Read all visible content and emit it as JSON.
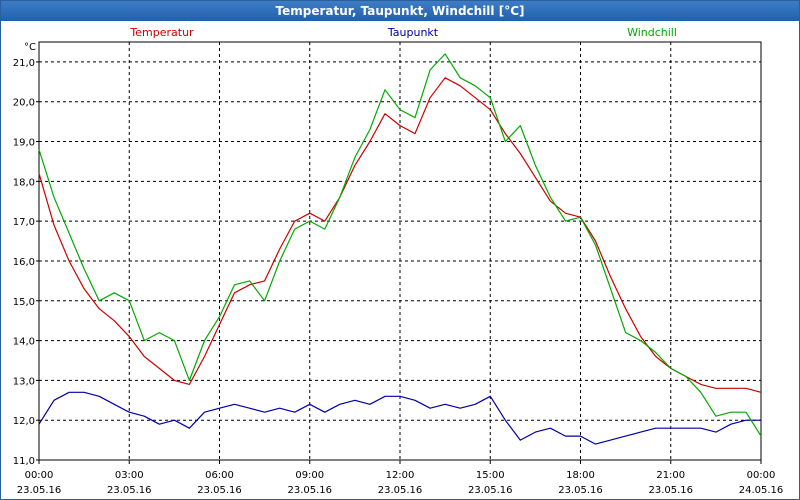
{
  "window": {
    "title": "Temperatur, Taupunkt, Windchill [°C]"
  },
  "chart_data": {
    "type": "line",
    "title": "Temperatur, Taupunkt, Windchill [°C]",
    "ylabel": "°C",
    "ylim": [
      11.0,
      21.5
    ],
    "y_ticks": [
      "11,0",
      "12,0",
      "13,0",
      "14,0",
      "15,0",
      "16,0",
      "17,0",
      "18,0",
      "19,0",
      "20,0",
      "21,0"
    ],
    "x_ticks": [
      {
        "time": "00:00",
        "date": "23.05.16"
      },
      {
        "time": "03:00",
        "date": "23.05.16"
      },
      {
        "time": "06:00",
        "date": "23.05.16"
      },
      {
        "time": "09:00",
        "date": "23.05.16"
      },
      {
        "time": "12:00",
        "date": "23.05.16"
      },
      {
        "time": "15:00",
        "date": "23.05.16"
      },
      {
        "time": "18:00",
        "date": "23.05.16"
      },
      {
        "time": "21:00",
        "date": "23.05.16"
      },
      {
        "time": "00:00",
        "date": "24.05.16"
      }
    ],
    "xlim_hours": [
      0,
      24
    ],
    "grid": true,
    "series": [
      {
        "name": "Temperatur",
        "color": "#cc0000",
        "x": [
          0,
          0.5,
          1,
          1.5,
          2,
          2.5,
          3,
          3.5,
          4,
          4.5,
          5,
          5.5,
          6,
          6.5,
          7,
          7.5,
          8,
          8.5,
          9,
          9.5,
          10,
          10.5,
          11,
          11.5,
          12,
          12.5,
          13,
          13.5,
          14,
          14.5,
          15,
          15.5,
          16,
          16.5,
          17,
          17.5,
          18,
          18.5,
          19,
          19.5,
          20,
          20.5,
          21,
          21.5,
          22,
          22.5,
          23,
          23.5,
          24
        ],
        "values": [
          18.2,
          16.9,
          16.0,
          15.3,
          14.8,
          14.5,
          14.1,
          13.6,
          13.3,
          13.0,
          12.9,
          13.6,
          14.4,
          15.2,
          15.4,
          15.5,
          16.3,
          17.0,
          17.2,
          17.0,
          17.6,
          18.4,
          19.0,
          19.7,
          19.4,
          19.2,
          20.1,
          20.6,
          20.4,
          20.1,
          19.8,
          19.2,
          18.7,
          18.1,
          17.5,
          17.2,
          17.1,
          16.5,
          15.6,
          14.8,
          14.1,
          13.6,
          13.3,
          13.1,
          12.9,
          12.8,
          12.8,
          12.8,
          12.7
        ]
      },
      {
        "name": "Taupunkt",
        "color": "#0000aa",
        "x": [
          0,
          0.5,
          1,
          1.5,
          2,
          2.5,
          3,
          3.5,
          4,
          4.5,
          5,
          5.5,
          6,
          6.5,
          7,
          7.5,
          8,
          8.5,
          9,
          9.5,
          10,
          10.5,
          11,
          11.5,
          12,
          12.5,
          13,
          13.5,
          14,
          14.5,
          15,
          15.5,
          16,
          16.5,
          17,
          17.5,
          18,
          18.5,
          19,
          19.5,
          20,
          20.5,
          21,
          21.5,
          22,
          22.5,
          23,
          23.5,
          24
        ],
        "values": [
          11.9,
          12.5,
          12.7,
          12.7,
          12.6,
          12.4,
          12.2,
          12.1,
          11.9,
          12.0,
          11.8,
          12.2,
          12.3,
          12.4,
          12.3,
          12.2,
          12.3,
          12.2,
          12.4,
          12.2,
          12.4,
          12.5,
          12.4,
          12.6,
          12.6,
          12.5,
          12.3,
          12.4,
          12.3,
          12.4,
          12.6,
          12.0,
          11.5,
          11.7,
          11.8,
          11.6,
          11.6,
          11.4,
          11.5,
          11.6,
          11.7,
          11.8,
          11.8,
          11.8,
          11.8,
          11.7,
          11.9,
          12.0,
          12.0
        ]
      },
      {
        "name": "Windchill",
        "color": "#00aa00",
        "x": [
          0,
          0.5,
          1,
          1.5,
          2,
          2.5,
          3,
          3.5,
          4,
          4.5,
          5,
          5.5,
          6,
          6.5,
          7,
          7.5,
          8,
          8.5,
          9,
          9.5,
          10,
          10.5,
          11,
          11.5,
          12,
          12.5,
          13,
          13.5,
          14,
          14.5,
          15,
          15.5,
          16,
          16.5,
          17,
          17.5,
          18,
          18.5,
          19,
          19.5,
          20,
          20.5,
          21,
          21.5,
          22,
          22.5,
          23,
          23.5,
          24
        ],
        "values": [
          18.8,
          17.6,
          16.7,
          15.8,
          15.0,
          15.2,
          15.0,
          14.0,
          14.2,
          14.0,
          13.0,
          14.0,
          14.6,
          15.4,
          15.5,
          15.0,
          16.0,
          16.8,
          17.0,
          16.8,
          17.6,
          18.6,
          19.3,
          20.3,
          19.8,
          19.6,
          20.8,
          21.2,
          20.6,
          20.4,
          20.1,
          19.0,
          19.4,
          18.4,
          17.6,
          17.0,
          17.1,
          16.4,
          15.3,
          14.2,
          14.0,
          13.7,
          13.3,
          13.1,
          12.7,
          12.1,
          12.2,
          12.2,
          11.6
        ]
      }
    ]
  }
}
